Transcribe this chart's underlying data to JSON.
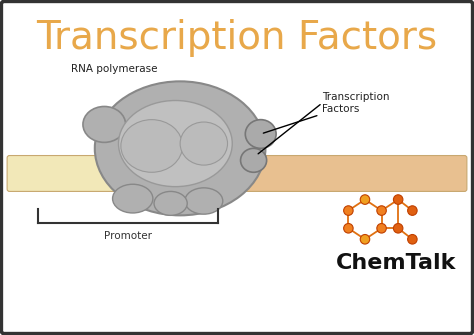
{
  "title": "Transcription Factors",
  "title_color": "#E8A84A",
  "title_fontsize": 28,
  "bg_color": "#FFFFFF",
  "border_color": "#333333",
  "rna_pol_label": "RNA polymerase",
  "tf_label": "Transcription\nFactors",
  "promoter_label": "Promoter",
  "chemtalk_label": "ChemTalk",
  "dna_color_left": "#F0E0B0",
  "dna_color_mid": "#E8D890",
  "dna_color_right": "#E8C898",
  "rna_pol_body_color": "#AAAAAA",
  "rna_pol_outline": "#888888",
  "label_fontsize": 7.5,
  "chemtalk_fontsize": 16
}
